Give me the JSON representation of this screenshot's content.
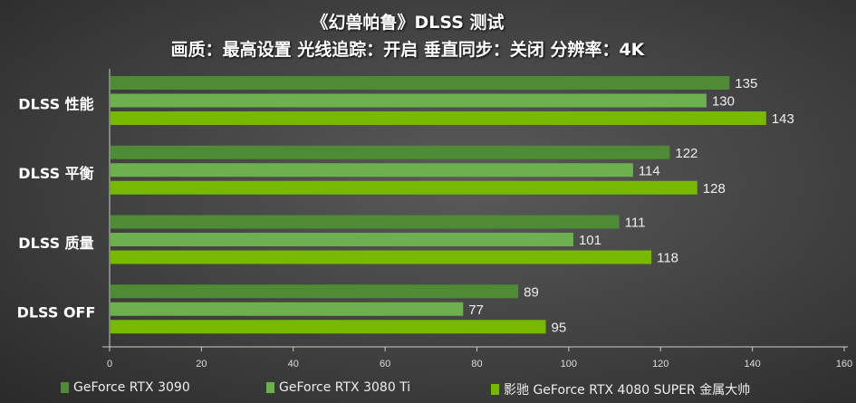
{
  "chart_data": {
    "type": "bar",
    "orientation": "horizontal",
    "title": "《幻兽帕鲁》DLSS 测试",
    "subtitle": "画质：最高设置 光线追踪：开启 垂直同步：关闭 分辨率：4K",
    "categories": [
      "DLSS 性能",
      "DLSS 平衡",
      "DLSS 质量",
      "DLSS  OFF"
    ],
    "series": [
      {
        "name": "GeForce RTX 3090",
        "color": "#4f8a34",
        "values": [
          135,
          122,
          111,
          89
        ]
      },
      {
        "name": "GeForce RTX 3080 Ti",
        "color": "#6cb14e",
        "values": [
          130,
          114,
          101,
          77
        ]
      },
      {
        "name": "影驰 GeForce RTX 4080 SUPER 金属大帅",
        "color": "#76b900",
        "values": [
          143,
          128,
          118,
          95
        ]
      }
    ],
    "xlim": [
      0,
      160
    ],
    "xticks": [
      0,
      20,
      40,
      60,
      80,
      100,
      120,
      140,
      160
    ],
    "legend": "bottom"
  }
}
